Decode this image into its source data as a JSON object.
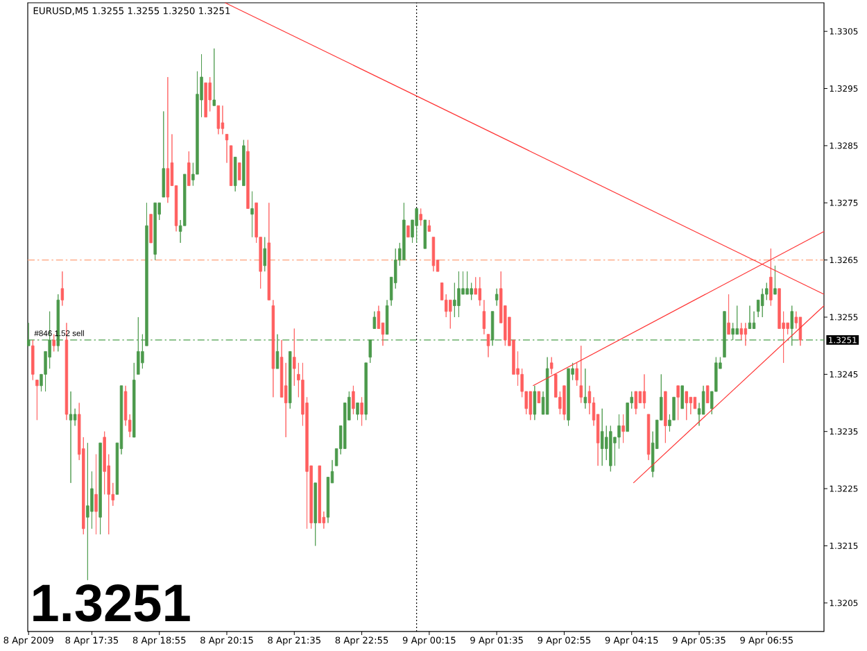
{
  "chart_data": {
    "type": "candlestick",
    "title": "EURUSD,M5 1.3255 1.3255 1.3250 1.3251",
    "subtitle": "1.3251",
    "xlim": [
      "2009-04-08T16:19",
      "2009-04-09T08:03"
    ],
    "xticks": [
      {
        "value": "2009-04-08T16:20",
        "label": "8 Apr 2009"
      },
      {
        "value": "2009-04-08T17:35",
        "label": "8 Apr 17:35"
      },
      {
        "value": "2009-04-08T18:55",
        "label": "8 Apr 18:55"
      },
      {
        "value": "2009-04-08T20:15",
        "label": "8 Apr 20:15"
      },
      {
        "value": "2009-04-08T21:35",
        "label": "8 Apr 21:35"
      },
      {
        "value": "2009-04-08T22:55",
        "label": "8 Apr 22:55"
      },
      {
        "value": "2009-04-09T00:15",
        "label": "9 Apr 00:15"
      },
      {
        "value": "2009-04-09T01:35",
        "label": "9 Apr 01:35"
      },
      {
        "value": "2009-04-09T02:55",
        "label": "9 Apr 02:55"
      },
      {
        "value": "2009-04-09T04:15",
        "label": "9 Apr 04:15"
      },
      {
        "value": "2009-04-09T05:35",
        "label": "9 Apr 05:35"
      },
      {
        "value": "2009-04-09T06:55",
        "label": "9 Apr 06:55"
      }
    ],
    "ylim": [
      1.32,
      1.331
    ],
    "yticks": [
      1.3205,
      1.3215,
      1.3225,
      1.3235,
      1.3245,
      1.3255,
      1.3265,
      1.3275,
      1.3285,
      1.3295,
      1.3305
    ],
    "x": [
      "2009-04-08T16:20",
      "2009-04-08T16:25",
      "2009-04-08T16:30",
      "2009-04-08T16:35",
      "2009-04-08T16:40",
      "2009-04-08T16:45",
      "2009-04-08T16:50",
      "2009-04-08T16:55",
      "2009-04-08T17:00",
      "2009-04-08T17:05",
      "2009-04-08T17:10",
      "2009-04-08T17:15",
      "2009-04-08T17:20",
      "2009-04-08T17:25",
      "2009-04-08T17:30",
      "2009-04-08T17:35",
      "2009-04-08T17:40",
      "2009-04-08T17:45",
      "2009-04-08T17:50",
      "2009-04-08T17:55",
      "2009-04-08T18:00",
      "2009-04-08T18:05",
      "2009-04-08T18:10",
      "2009-04-08T18:15",
      "2009-04-08T18:20",
      "2009-04-08T18:25",
      "2009-04-08T18:30",
      "2009-04-08T18:35",
      "2009-04-08T18:40",
      "2009-04-08T18:45",
      "2009-04-08T18:50",
      "2009-04-08T18:55",
      "2009-04-08T19:00",
      "2009-04-08T19:05",
      "2009-04-08T19:10",
      "2009-04-08T19:15",
      "2009-04-08T19:20",
      "2009-04-08T19:25",
      "2009-04-08T19:30",
      "2009-04-08T19:35",
      "2009-04-08T19:40",
      "2009-04-08T19:45",
      "2009-04-08T19:50",
      "2009-04-08T19:55",
      "2009-04-08T20:00",
      "2009-04-08T20:05",
      "2009-04-08T20:10",
      "2009-04-08T20:15",
      "2009-04-08T20:20",
      "2009-04-08T20:25",
      "2009-04-08T20:30",
      "2009-04-08T20:35",
      "2009-04-08T20:40",
      "2009-04-08T20:45",
      "2009-04-08T20:50",
      "2009-04-08T20:55",
      "2009-04-08T21:00",
      "2009-04-08T21:05",
      "2009-04-08T21:10",
      "2009-04-08T21:15",
      "2009-04-08T21:20",
      "2009-04-08T21:25",
      "2009-04-08T21:30",
      "2009-04-08T21:35",
      "2009-04-08T21:40",
      "2009-04-08T21:45",
      "2009-04-08T21:50",
      "2009-04-08T21:55",
      "2009-04-08T22:00",
      "2009-04-08T22:05",
      "2009-04-08T22:10",
      "2009-04-08T22:15",
      "2009-04-08T22:20",
      "2009-04-08T22:25",
      "2009-04-08T22:30",
      "2009-04-08T22:35",
      "2009-04-08T22:40",
      "2009-04-08T22:45",
      "2009-04-08T22:50",
      "2009-04-08T22:55",
      "2009-04-08T23:00",
      "2009-04-08T23:05",
      "2009-04-08T23:10",
      "2009-04-08T23:15",
      "2009-04-08T23:20",
      "2009-04-08T23:25",
      "2009-04-08T23:30",
      "2009-04-08T23:35",
      "2009-04-08T23:40",
      "2009-04-08T23:45",
      "2009-04-08T23:50",
      "2009-04-08T23:55",
      "2009-04-09T00:00",
      "2009-04-09T00:05",
      "2009-04-09T00:10",
      "2009-04-09T00:15",
      "2009-04-09T00:20",
      "2009-04-09T00:25",
      "2009-04-09T00:30",
      "2009-04-09T00:35",
      "2009-04-09T00:40",
      "2009-04-09T00:45",
      "2009-04-09T00:50",
      "2009-04-09T00:55",
      "2009-04-09T01:00",
      "2009-04-09T01:05",
      "2009-04-09T01:10",
      "2009-04-09T01:15",
      "2009-04-09T01:20",
      "2009-04-09T01:25",
      "2009-04-09T01:30",
      "2009-04-09T01:35",
      "2009-04-09T01:40",
      "2009-04-09T01:45",
      "2009-04-09T01:50",
      "2009-04-09T01:55",
      "2009-04-09T02:00",
      "2009-04-09T02:05",
      "2009-04-09T02:10",
      "2009-04-09T02:15",
      "2009-04-09T02:20",
      "2009-04-09T02:25",
      "2009-04-09T02:30",
      "2009-04-09T02:35",
      "2009-04-09T02:40",
      "2009-04-09T02:45",
      "2009-04-09T02:50",
      "2009-04-09T02:55",
      "2009-04-09T03:00",
      "2009-04-09T03:05",
      "2009-04-09T03:10",
      "2009-04-09T03:15",
      "2009-04-09T03:20",
      "2009-04-09T03:25",
      "2009-04-09T03:30",
      "2009-04-09T03:35",
      "2009-04-09T03:40",
      "2009-04-09T03:45",
      "2009-04-09T03:50",
      "2009-04-09T03:55",
      "2009-04-09T04:00",
      "2009-04-09T04:05",
      "2009-04-09T04:10",
      "2009-04-09T04:15",
      "2009-04-09T04:20",
      "2009-04-09T04:25",
      "2009-04-09T04:30",
      "2009-04-09T04:35",
      "2009-04-09T04:40",
      "2009-04-09T04:45",
      "2009-04-09T04:50",
      "2009-04-09T04:55",
      "2009-04-09T05:00",
      "2009-04-09T05:05",
      "2009-04-09T05:10",
      "2009-04-09T05:15",
      "2009-04-09T05:20",
      "2009-04-09T05:25",
      "2009-04-09T05:30",
      "2009-04-09T05:35",
      "2009-04-09T05:40",
      "2009-04-09T05:45",
      "2009-04-09T05:50",
      "2009-04-09T05:55",
      "2009-04-09T06:00",
      "2009-04-09T06:05",
      "2009-04-09T06:10",
      "2009-04-09T06:15",
      "2009-04-09T06:20",
      "2009-04-09T06:25",
      "2009-04-09T06:30",
      "2009-04-09T06:35",
      "2009-04-09T06:40",
      "2009-04-09T06:45",
      "2009-04-09T06:50",
      "2009-04-09T06:55",
      "2009-04-09T07:00",
      "2009-04-09T07:05",
      "2009-04-09T07:10",
      "2009-04-09T07:15",
      "2009-04-09T07:20",
      "2009-04-09T07:25",
      "2009-04-09T07:30",
      "2009-04-09T07:35"
    ],
    "ohlc": [
      [
        1.325,
        1.3254,
        1.325,
        1.3251
      ],
      [
        1.325,
        1.3251,
        1.3244,
        1.3245
      ],
      [
        1.3244,
        1.3244,
        1.3237,
        1.3243
      ],
      [
        1.3243,
        1.3245,
        1.3242,
        1.3245
      ],
      [
        1.3245,
        1.3249,
        1.3242,
        1.3249
      ],
      [
        1.3248,
        1.3256,
        1.3246,
        1.3251
      ],
      [
        1.3251,
        1.3252,
        1.3249,
        1.325
      ],
      [
        1.325,
        1.3259,
        1.3249,
        1.3258
      ],
      [
        1.326,
        1.3263,
        1.3257,
        1.3258
      ],
      [
        1.3251,
        1.3254,
        1.3237,
        1.3238
      ],
      [
        1.3237,
        1.3242,
        1.3226,
        1.3238
      ],
      [
        1.3237,
        1.3239,
        1.3236,
        1.3238
      ],
      [
        1.3238,
        1.324,
        1.323,
        1.3231
      ],
      [
        1.3232,
        1.3234,
        1.3217,
        1.3218
      ],
      [
        1.322,
        1.3233,
        1.3209,
        1.3222
      ],
      [
        1.3221,
        1.3228,
        1.3218,
        1.3225
      ],
      [
        1.3224,
        1.3231,
        1.3217,
        1.3221
      ],
      [
        1.322,
        1.3233,
        1.3217,
        1.3233
      ],
      [
        1.3234,
        1.3235,
        1.3224,
        1.3228
      ],
      [
        1.3229,
        1.3231,
        1.3217,
        1.3224
      ],
      [
        1.3224,
        1.3226,
        1.3222,
        1.3223
      ],
      [
        1.3224,
        1.3233,
        1.3224,
        1.3233
      ],
      [
        1.3232,
        1.3243,
        1.3231,
        1.3243
      ],
      [
        1.3242,
        1.3243,
        1.3236,
        1.3237
      ],
      [
        1.3237,
        1.3238,
        1.3234,
        1.3235
      ],
      [
        1.3234,
        1.3247,
        1.3234,
        1.3244
      ],
      [
        1.3245,
        1.3255,
        1.3245,
        1.3249
      ],
      [
        1.3247,
        1.3252,
        1.3246,
        1.3249
      ],
      [
        1.325,
        1.3275,
        1.325,
        1.3271
      ],
      [
        1.3273,
        1.3273,
        1.3268,
        1.3268
      ],
      [
        1.3266,
        1.3275,
        1.3265,
        1.3275
      ],
      [
        1.3273,
        1.3275,
        1.3272,
        1.3275
      ],
      [
        1.3276,
        1.3291,
        1.3276,
        1.3281
      ],
      [
        1.3281,
        1.3297,
        1.3275,
        1.3276
      ],
      [
        1.3282,
        1.3287,
        1.3278,
        1.3278
      ],
      [
        1.3278,
        1.3278,
        1.327,
        1.3271
      ],
      [
        1.327,
        1.3272,
        1.3268,
        1.3271
      ],
      [
        1.3271,
        1.328,
        1.3271,
        1.328
      ],
      [
        1.3282,
        1.3284,
        1.3278,
        1.3278
      ],
      [
        1.3279,
        1.3282,
        1.3278,
        1.328
      ],
      [
        1.328,
        1.3298,
        1.328,
        1.3294
      ],
      [
        1.3293,
        1.3301,
        1.329,
        1.3297
      ],
      [
        1.3296,
        1.3296,
        1.329,
        1.329
      ],
      [
        1.3296,
        1.3297,
        1.3291,
        1.3293
      ],
      [
        1.3292,
        1.3302,
        1.3292,
        1.3293
      ],
      [
        1.3292,
        1.3292,
        1.3287,
        1.3288
      ],
      [
        1.3289,
        1.3292,
        1.3287,
        1.3288
      ],
      [
        1.3287,
        1.3287,
        1.3282,
        1.3286
      ],
      [
        1.3285,
        1.3285,
        1.3278,
        1.3278
      ],
      [
        1.3278,
        1.3283,
        1.3277,
        1.3283
      ],
      [
        1.3282,
        1.3282,
        1.3279,
        1.3279
      ],
      [
        1.3278,
        1.3286,
        1.3278,
        1.3285
      ],
      [
        1.3284,
        1.3286,
        1.3274,
        1.3274
      ],
      [
        1.3273,
        1.3277,
        1.3269,
        1.3274
      ],
      [
        1.3275,
        1.3275,
        1.3268,
        1.3269
      ],
      [
        1.3269,
        1.3269,
        1.326,
        1.3263
      ],
      [
        1.3264,
        1.3269,
        1.3263,
        1.3267
      ],
      [
        1.3268,
        1.3275,
        1.3258,
        1.3258
      ],
      [
        1.3257,
        1.3258,
        1.3241,
        1.3246
      ],
      [
        1.3246,
        1.3252,
        1.3246,
        1.3249
      ],
      [
        1.3248,
        1.3251,
        1.3241,
        1.3241
      ],
      [
        1.3243,
        1.3247,
        1.3234,
        1.324
      ],
      [
        1.324,
        1.3249,
        1.3239,
        1.3249
      ],
      [
        1.3248,
        1.3253,
        1.3243,
        1.3246
      ],
      [
        1.3245,
        1.3247,
        1.3241,
        1.3244
      ],
      [
        1.3244,
        1.3247,
        1.3236,
        1.3238
      ],
      [
        1.324,
        1.3241,
        1.3218,
        1.3228
      ],
      [
        1.3229,
        1.3229,
        1.3218,
        1.3219
      ],
      [
        1.3219,
        1.3226,
        1.3215,
        1.3226
      ],
      [
        1.3229,
        1.3229,
        1.3219,
        1.3219
      ],
      [
        1.322,
        1.3221,
        1.3218,
        1.3219
      ],
      [
        1.322,
        1.3227,
        1.3219,
        1.3227
      ],
      [
        1.3226,
        1.323,
        1.3226,
        1.3228
      ],
      [
        1.3229,
        1.3232,
        1.3229,
        1.3232
      ],
      [
        1.3232,
        1.3236,
        1.3231,
        1.3236
      ],
      [
        1.3232,
        1.324,
        1.3232,
        1.324
      ],
      [
        1.3237,
        1.3242,
        1.3237,
        1.3241
      ],
      [
        1.3242,
        1.3243,
        1.3238,
        1.3239
      ],
      [
        1.3238,
        1.324,
        1.3237,
        1.324
      ],
      [
        1.324,
        1.3241,
        1.3236,
        1.3238
      ],
      [
        1.3238,
        1.3247,
        1.3237,
        1.3247
      ],
      [
        1.3248,
        1.3251,
        1.3247,
        1.3251
      ],
      [
        1.3253,
        1.3256,
        1.3253,
        1.3255
      ],
      [
        1.3256,
        1.3257,
        1.3253,
        1.3253
      ],
      [
        1.3254,
        1.3254,
        1.325,
        1.3252
      ],
      [
        1.3252,
        1.3258,
        1.3252,
        1.3257
      ],
      [
        1.3258,
        1.3262,
        1.3257,
        1.3262
      ],
      [
        1.3261,
        1.3267,
        1.326,
        1.3265
      ],
      [
        1.3265,
        1.3268,
        1.3264,
        1.3267
      ],
      [
        1.3265,
        1.3275,
        1.3265,
        1.3272
      ],
      [
        1.3271,
        1.3271,
        1.3269,
        1.3269
      ],
      [
        1.3269,
        1.3272,
        1.3268,
        1.3272
      ],
      [
        1.3271,
        1.3274,
        1.3268,
        1.3274
      ],
      [
        1.3273,
        1.3274,
        1.3271,
        1.3272
      ],
      [
        1.3267,
        1.3272,
        1.3267,
        1.3272
      ],
      [
        1.3271,
        1.3272,
        1.327,
        1.327
      ],
      [
        1.3269,
        1.3269,
        1.3263,
        1.3264
      ],
      [
        1.3265,
        1.3265,
        1.3263,
        1.3263
      ],
      [
        1.3261,
        1.3261,
        1.3258,
        1.3258
      ],
      [
        1.3258,
        1.3259,
        1.3255,
        1.3256
      ],
      [
        1.3258,
        1.3258,
        1.3253,
        1.3256
      ],
      [
        1.3257,
        1.3261,
        1.3255,
        1.3258
      ],
      [
        1.3257,
        1.3263,
        1.3255,
        1.326
      ],
      [
        1.3259,
        1.3263,
        1.3259,
        1.326
      ],
      [
        1.3259,
        1.3263,
        1.3259,
        1.326
      ],
      [
        1.3259,
        1.3261,
        1.3258,
        1.326
      ],
      [
        1.326,
        1.3262,
        1.3259,
        1.3259
      ],
      [
        1.326,
        1.3262,
        1.3257,
        1.3258
      ],
      [
        1.3256,
        1.3258,
        1.3252,
        1.3253
      ],
      [
        1.3252,
        1.3252,
        1.3248,
        1.325
      ],
      [
        1.3251,
        1.3256,
        1.325,
        1.3256
      ],
      [
        1.3258,
        1.326,
        1.3257,
        1.3259
      ],
      [
        1.326,
        1.3263,
        1.3254,
        1.3254
      ],
      [
        1.3257,
        1.3257,
        1.325,
        1.3251
      ],
      [
        1.3255,
        1.3255,
        1.325,
        1.325
      ],
      [
        1.3251,
        1.3251,
        1.3245,
        1.3245
      ],
      [
        1.3246,
        1.3249,
        1.3243,
        1.3245
      ],
      [
        1.3245,
        1.3246,
        1.3241,
        1.3242
      ],
      [
        1.3242,
        1.3242,
        1.3238,
        1.3239
      ],
      [
        1.3242,
        1.3242,
        1.3237,
        1.3238
      ],
      [
        1.3238,
        1.3243,
        1.3237,
        1.3242
      ],
      [
        1.3242,
        1.3242,
        1.324,
        1.324
      ],
      [
        1.3238,
        1.3242,
        1.3238,
        1.3241
      ],
      [
        1.3238,
        1.3248,
        1.3238,
        1.3246
      ],
      [
        1.3247,
        1.3248,
        1.3245,
        1.3246
      ],
      [
        1.3245,
        1.3245,
        1.3241,
        1.3241
      ],
      [
        1.3241,
        1.3242,
        1.3238,
        1.3239
      ],
      [
        1.3243,
        1.3243,
        1.3237,
        1.3238
      ],
      [
        1.3237,
        1.3246,
        1.3236,
        1.3246
      ],
      [
        1.3245,
        1.3247,
        1.3244,
        1.3246
      ],
      [
        1.3246,
        1.3247,
        1.3243,
        1.3244
      ],
      [
        1.3243,
        1.325,
        1.324,
        1.3241
      ],
      [
        1.324,
        1.3246,
        1.3239,
        1.3241
      ],
      [
        1.3242,
        1.3243,
        1.3238,
        1.324
      ],
      [
        1.324,
        1.3241,
        1.3236,
        1.3237
      ],
      [
        1.3238,
        1.3238,
        1.3229,
        1.3233
      ],
      [
        1.3232,
        1.3239,
        1.3229,
        1.3235
      ],
      [
        1.3232,
        1.3236,
        1.323,
        1.3234
      ],
      [
        1.3229,
        1.3236,
        1.3228,
        1.3235
      ],
      [
        1.3233,
        1.3234,
        1.3229,
        1.3234
      ],
      [
        1.3234,
        1.3238,
        1.3232,
        1.3236
      ],
      [
        1.3236,
        1.3238,
        1.3233,
        1.3235
      ],
      [
        1.3235,
        1.324,
        1.3235,
        1.324
      ],
      [
        1.324,
        1.3242,
        1.3239,
        1.3241
      ],
      [
        1.3242,
        1.3242,
        1.3238,
        1.3239
      ],
      [
        1.3242,
        1.3242,
        1.324,
        1.324
      ],
      [
        1.3242,
        1.3245,
        1.3239,
        1.324
      ],
      [
        1.3238,
        1.3238,
        1.323,
        1.3231
      ],
      [
        1.3228,
        1.3235,
        1.3227,
        1.3233
      ],
      [
        1.3232,
        1.3237,
        1.3232,
        1.3237
      ],
      [
        1.3237,
        1.3245,
        1.3237,
        1.3241
      ],
      [
        1.3242,
        1.3242,
        1.3233,
        1.3236
      ],
      [
        1.3236,
        1.3238,
        1.3235,
        1.3237
      ],
      [
        1.3237,
        1.3241,
        1.3237,
        1.3241
      ],
      [
        1.3243,
        1.3243,
        1.3237,
        1.3241
      ],
      [
        1.3239,
        1.3243,
        1.3239,
        1.3243
      ],
      [
        1.3242,
        1.3242,
        1.3237,
        1.324
      ],
      [
        1.3241,
        1.3241,
        1.3238,
        1.324
      ],
      [
        1.3241,
        1.3241,
        1.3239,
        1.3239
      ],
      [
        1.3238,
        1.324,
        1.3236,
        1.3239
      ],
      [
        1.3238,
        1.3243,
        1.3238,
        1.3242
      ],
      [
        1.3243,
        1.3243,
        1.324,
        1.324
      ],
      [
        1.3239,
        1.3242,
        1.3238,
        1.3242
      ],
      [
        1.3242,
        1.3248,
        1.3242,
        1.3247
      ],
      [
        1.3246,
        1.3248,
        1.3246,
        1.3247
      ],
      [
        1.3248,
        1.3256,
        1.3248,
        1.3256
      ],
      [
        1.3254,
        1.3259,
        1.3252,
        1.3252
      ],
      [
        1.3252,
        1.3254,
        1.3251,
        1.3253
      ],
      [
        1.3252,
        1.3257,
        1.3252,
        1.3253
      ],
      [
        1.3253,
        1.3254,
        1.3251,
        1.3252
      ],
      [
        1.3253,
        1.3254,
        1.325,
        1.3252
      ],
      [
        1.3253,
        1.3257,
        1.3253,
        1.3254
      ],
      [
        1.3253,
        1.3256,
        1.3253,
        1.3254
      ],
      [
        1.3256,
        1.3258,
        1.3255,
        1.3258
      ],
      [
        1.3257,
        1.326,
        1.3255,
        1.3259
      ],
      [
        1.3259,
        1.3261,
        1.3258,
        1.326
      ],
      [
        1.3262,
        1.3267,
        1.3257,
        1.3258
      ],
      [
        1.3259,
        1.3264,
        1.3259,
        1.326
      ],
      [
        1.326,
        1.326,
        1.3253,
        1.3253
      ],
      [
        1.3254,
        1.3256,
        1.3247,
        1.3253
      ],
      [
        1.3254,
        1.3254,
        1.3252,
        1.3253
      ],
      [
        1.3253,
        1.3257,
        1.325,
        1.3256
      ],
      [
        1.3255,
        1.3256,
        1.3253,
        1.3254
      ],
      [
        1.3255,
        1.3255,
        1.325,
        1.3251
      ]
    ],
    "colors": [
      "#4c9a4c",
      "#ff5f5f",
      "#ff5f5f",
      "#4c9a4c",
      "#4c9a4c",
      "#4c9a4c",
      "#ff5f5f",
      "#4c9a4c",
      "#ff5f5f",
      "#ff5f5f",
      "#4c9a4c",
      "#4c9a4c",
      "#ff5f5f",
      "#ff5f5f",
      "#4c9a4c",
      "#4c9a4c",
      "#ff5f5f",
      "#4c9a4c",
      "#ff5f5f",
      "#ff5f5f",
      "#ff5f5f",
      "#4c9a4c",
      "#4c9a4c",
      "#ff5f5f",
      "#ff5f5f",
      "#4c9a4c",
      "#4c9a4c",
      "#4c9a4c",
      "#4c9a4c",
      "#ff5f5f",
      "#4c9a4c",
      "#4c9a4c",
      "#4c9a4c",
      "#ff5f5f",
      "#ff5f5f",
      "#ff5f5f",
      "#4c9a4c",
      "#4c9a4c",
      "#ff5f5f",
      "#4c9a4c",
      "#4c9a4c",
      "#4c9a4c",
      "#ff5f5f",
      "#ff5f5f",
      "#4c9a4c",
      "#ff5f5f",
      "#ff5f5f",
      "#ff5f5f",
      "#ff5f5f",
      "#4c9a4c",
      "#ff5f5f",
      "#4c9a4c",
      "#ff5f5f",
      "#4c9a4c",
      "#ff5f5f",
      "#ff5f5f",
      "#4c9a4c",
      "#ff5f5f",
      "#ff5f5f",
      "#4c9a4c",
      "#ff5f5f",
      "#ff5f5f",
      "#4c9a4c",
      "#ff5f5f",
      "#ff5f5f",
      "#ff5f5f",
      "#ff5f5f",
      "#ff5f5f",
      "#4c9a4c",
      "#ff5f5f",
      "#ff5f5f",
      "#4c9a4c",
      "#4c9a4c",
      "#4c9a4c",
      "#4c9a4c",
      "#4c9a4c",
      "#4c9a4c",
      "#ff5f5f",
      "#4c9a4c",
      "#ff5f5f",
      "#4c9a4c",
      "#4c9a4c",
      "#4c9a4c",
      "#ff5f5f",
      "#ff5f5f",
      "#4c9a4c",
      "#4c9a4c",
      "#4c9a4c",
      "#4c9a4c",
      "#4c9a4c",
      "#ff5f5f",
      "#4c9a4c",
      "#4c9a4c",
      "#ff5f5f",
      "#4c9a4c",
      "#ff5f5f",
      "#ff5f5f",
      "#ff5f5f",
      "#ff5f5f",
      "#ff5f5f",
      "#ff5f5f",
      "#4c9a4c",
      "#4c9a4c",
      "#4c9a4c",
      "#4c9a4c",
      "#4c9a4c",
      "#ff5f5f",
      "#ff5f5f",
      "#ff5f5f",
      "#ff5f5f",
      "#4c9a4c",
      "#4c9a4c",
      "#ff5f5f",
      "#ff5f5f",
      "#ff5f5f",
      "#ff5f5f",
      "#ff5f5f",
      "#ff5f5f",
      "#ff5f5f",
      "#ff5f5f",
      "#4c9a4c",
      "#ff5f5f",
      "#4c9a4c",
      "#4c9a4c",
      "#ff5f5f",
      "#ff5f5f",
      "#ff5f5f",
      "#ff5f5f",
      "#4c9a4c",
      "#4c9a4c",
      "#ff5f5f",
      "#ff5f5f",
      "#4c9a4c",
      "#ff5f5f",
      "#ff5f5f",
      "#ff5f5f",
      "#4c9a4c",
      "#4c9a4c",
      "#4c9a4c",
      "#4c9a4c",
      "#4c9a4c",
      "#ff5f5f",
      "#4c9a4c",
      "#4c9a4c",
      "#ff5f5f",
      "#ff5f5f",
      "#ff5f5f",
      "#ff5f5f",
      "#4c9a4c",
      "#4c9a4c",
      "#4c9a4c",
      "#ff5f5f",
      "#4c9a4c",
      "#4c9a4c",
      "#ff5f5f",
      "#4c9a4c",
      "#ff5f5f",
      "#ff5f5f",
      "#ff5f5f",
      "#4c9a4c",
      "#4c9a4c",
      "#ff5f5f",
      "#4c9a4c",
      "#4c9a4c",
      "#4c9a4c",
      "#4c9a4c",
      "#ff5f5f",
      "#4c9a4c",
      "#4c9a4c",
      "#ff5f5f",
      "#ff5f5f",
      "#4c9a4c",
      "#4c9a4c",
      "#4c9a4c",
      "#4c9a4c",
      "#4c9a4c",
      "#ff5f5f",
      "#4c9a4c",
      "#ff5f5f",
      "#ff5f5f",
      "#ff5f5f",
      "#4c9a4c",
      "#ff5f5f",
      "#ff5f5f"
    ],
    "series": [
      {
        "type": "line",
        "color": "#ff3333",
        "x": [
          "2009-04-08T20:13",
          "2009-04-09T08:03"
        ],
        "values": [
          1.331,
          1.3259
        ]
      },
      {
        "type": "line",
        "color": "#ff3333",
        "x": [
          "2009-04-09T02:18",
          "2009-04-09T08:03"
        ],
        "values": [
          1.3243,
          1.327
        ]
      },
      {
        "type": "line",
        "color": "#ff3333",
        "x": [
          "2009-04-09T04:17",
          "2009-04-09T08:03"
        ],
        "values": [
          1.3226,
          1.3257
        ]
      }
    ],
    "ref_lines": [
      {
        "axis": "y",
        "value": 1.3265,
        "color": "#ffa07a",
        "line_style": "dashdot"
      },
      {
        "axis": "y",
        "value": 1.3251,
        "label": "#846 1.52 sell",
        "color": "#4ca04c",
        "line_style": "dashdot"
      },
      {
        "axis": "x",
        "value": "2009-04-09T00:00",
        "color": "#000000",
        "line_style": "dotted"
      }
    ],
    "annotations": [
      "1.3251"
    ]
  }
}
